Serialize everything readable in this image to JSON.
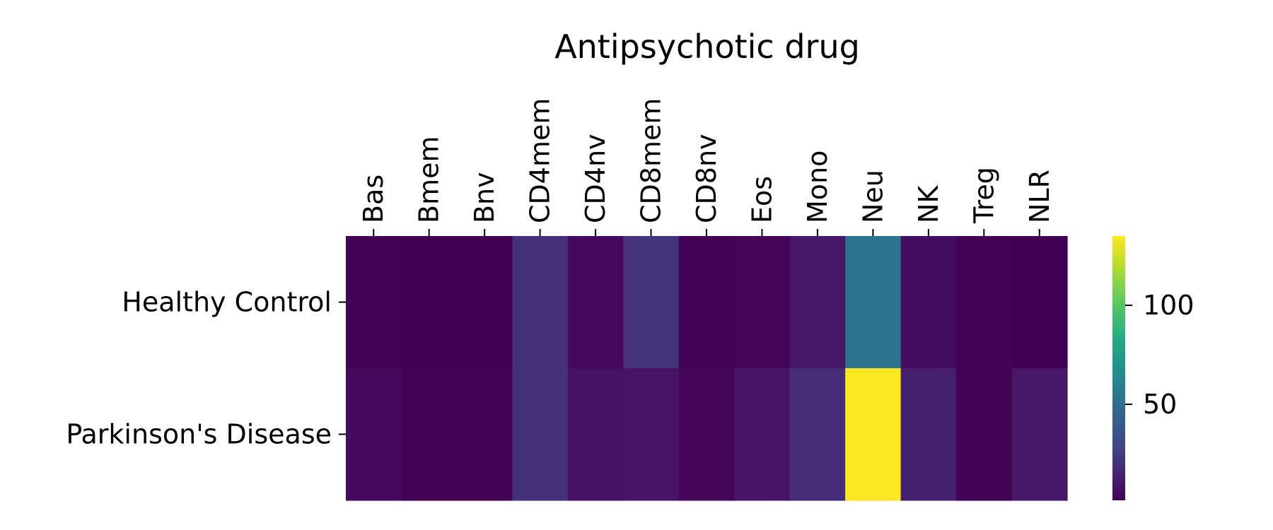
{
  "chart_data": {
    "type": "heatmap",
    "title": "Antipsychotic drug",
    "x_categories": [
      "Bas",
      "Bmem",
      "Bnv",
      "CD4mem",
      "CD4nv",
      "CD8mem",
      "CD8nv",
      "Eos",
      "Mono",
      "Neu",
      "NK",
      "Treg",
      "NLR"
    ],
    "y_categories": [
      "Healthy Control",
      "Parkinson's Disease"
    ],
    "values": [
      [
        2.5,
        1.5,
        1.5,
        20,
        5,
        21,
        2,
        3,
        10,
        53,
        6,
        2,
        1.5
      ],
      [
        5,
        2,
        2,
        20,
        8,
        9,
        3,
        9,
        18,
        135,
        13,
        2.5,
        10
      ]
    ],
    "colormap": "viridis",
    "vmin": 1.5,
    "vmax": 135,
    "colorbar_ticks": [
      50,
      100
    ],
    "xlabel": "",
    "ylabel": ""
  }
}
